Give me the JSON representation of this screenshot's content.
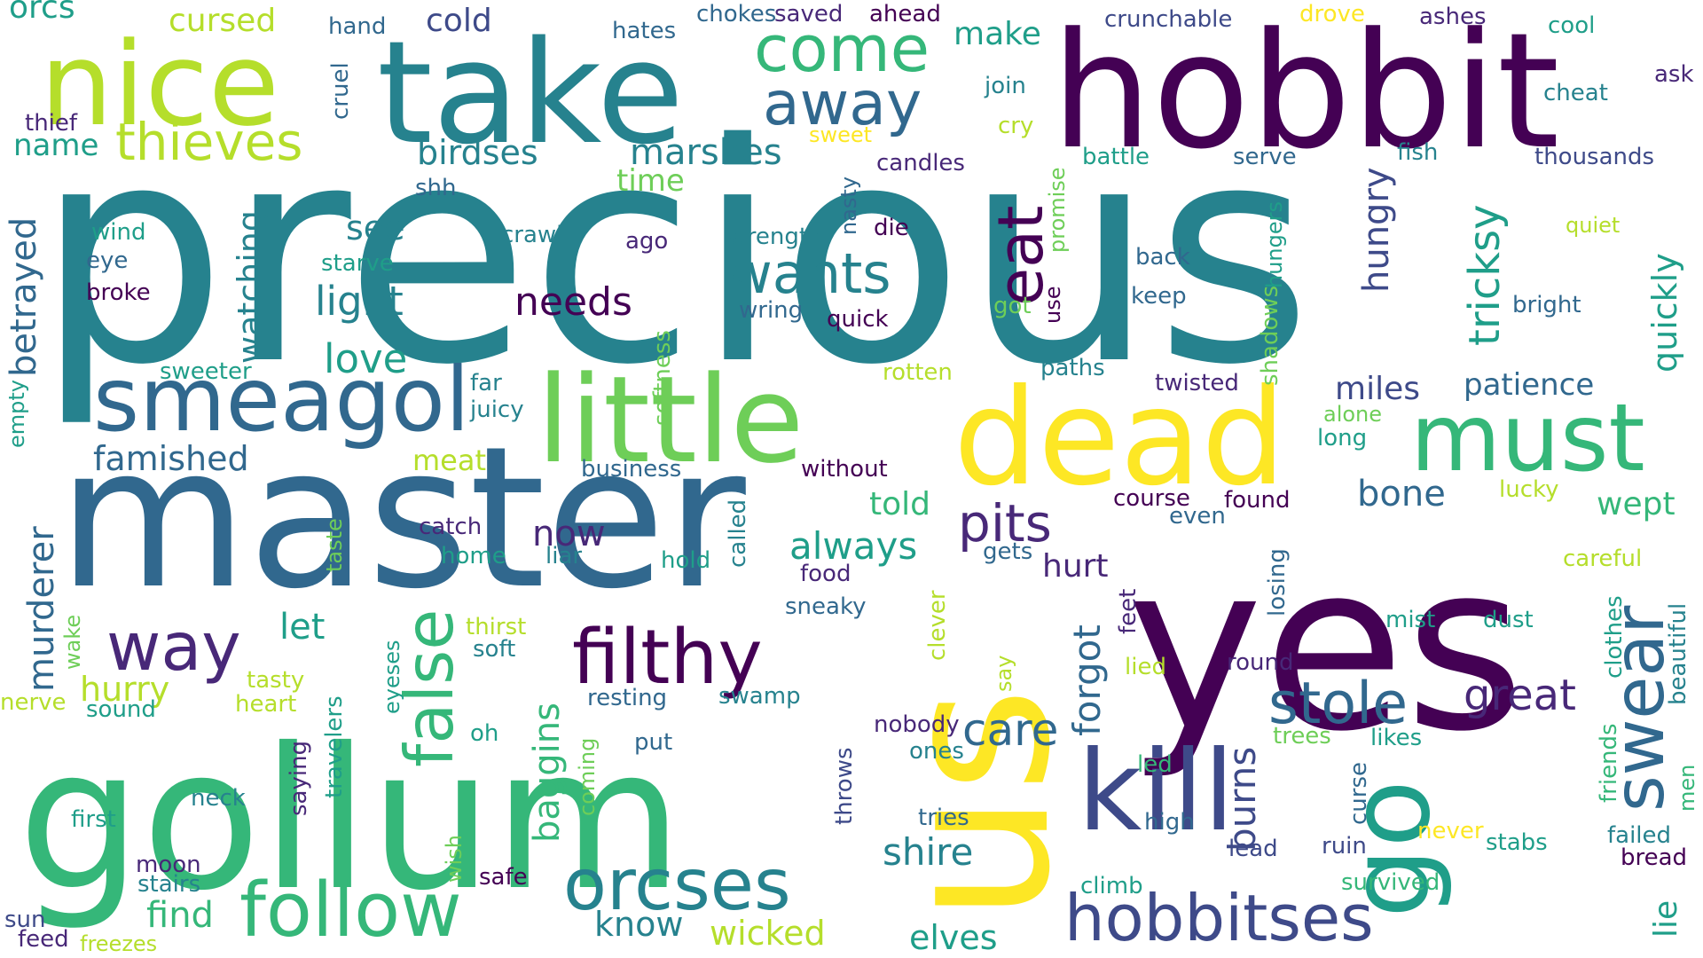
{
  "palette": {
    "purple": "#440154",
    "indigo": "#482878",
    "blue": "#3e4a89",
    "steel": "#31688e",
    "teal": "#26828e",
    "sea": "#1f9e89",
    "green": "#35b779",
    "lime": "#6ece58",
    "chartreuse": "#b5de2b",
    "yellow": "#fde725"
  },
  "words": [
    {
      "text": "precious",
      "color": "teal"
    },
    {
      "text": "master",
      "color": "steel"
    },
    {
      "text": "yes",
      "color": "purple"
    },
    {
      "text": "us",
      "color": "yellow"
    },
    {
      "text": "gollum",
      "color": "green"
    },
    {
      "text": "hobbit",
      "color": "purple"
    },
    {
      "text": "take",
      "color": "teal"
    },
    {
      "text": "nice",
      "color": "chartreuse"
    },
    {
      "text": "dead",
      "color": "yellow"
    },
    {
      "text": "little",
      "color": "lime"
    },
    {
      "text": "smeagol",
      "color": "steel"
    },
    {
      "text": "kill",
      "color": "blue"
    },
    {
      "text": "go",
      "color": "sea"
    },
    {
      "text": "must",
      "color": "green"
    },
    {
      "text": "follow",
      "color": "green"
    },
    {
      "text": "filthy",
      "color": "purple"
    },
    {
      "text": "orcses",
      "color": "teal"
    },
    {
      "text": "hobbitses",
      "color": "blue"
    },
    {
      "text": "swear",
      "color": "steel"
    },
    {
      "text": "false",
      "color": "green"
    },
    {
      "text": "way",
      "color": "indigo"
    },
    {
      "text": "come",
      "color": "green"
    },
    {
      "text": "away",
      "color": "steel"
    },
    {
      "text": "wants",
      "color": "teal"
    },
    {
      "text": "stole",
      "color": "steel"
    },
    {
      "text": "eat",
      "color": "purple"
    },
    {
      "text": "thieves",
      "color": "chartreuse"
    },
    {
      "text": "pits",
      "color": "indigo"
    },
    {
      "text": "care",
      "color": "steel"
    },
    {
      "text": "tricksy",
      "color": "sea"
    },
    {
      "text": "great",
      "color": "indigo"
    },
    {
      "text": "needs",
      "color": "purple"
    },
    {
      "text": "light",
      "color": "teal"
    },
    {
      "text": "love",
      "color": "sea"
    },
    {
      "text": "always",
      "color": "sea"
    },
    {
      "text": "shire",
      "color": "teal"
    },
    {
      "text": "elves",
      "color": "sea"
    },
    {
      "text": "find",
      "color": "green"
    },
    {
      "text": "wicked",
      "color": "chartreuse"
    },
    {
      "text": "know",
      "color": "teal"
    },
    {
      "text": "baggins",
      "color": "green"
    },
    {
      "text": "burns",
      "color": "blue"
    },
    {
      "text": "marshes",
      "color": "teal"
    },
    {
      "text": "birdses",
      "color": "teal"
    },
    {
      "text": "famished",
      "color": "steel"
    },
    {
      "text": "murderer",
      "color": "steel"
    },
    {
      "text": "betrayed",
      "color": "steel"
    },
    {
      "text": "watching",
      "color": "teal"
    },
    {
      "text": "hungry",
      "color": "blue"
    },
    {
      "text": "quickly",
      "color": "sea"
    },
    {
      "text": "see",
      "color": "teal"
    },
    {
      "text": "let",
      "color": "sea"
    },
    {
      "text": "hurry",
      "color": "chartreuse"
    },
    {
      "text": "now",
      "color": "indigo"
    },
    {
      "text": "told",
      "color": "green"
    },
    {
      "text": "bone",
      "color": "steel"
    },
    {
      "text": "hurt",
      "color": "indigo"
    },
    {
      "text": "forgot",
      "color": "steel"
    },
    {
      "text": "miles",
      "color": "blue"
    },
    {
      "text": "patience",
      "color": "steel"
    },
    {
      "text": "wept",
      "color": "green"
    },
    {
      "text": "name",
      "color": "sea"
    },
    {
      "text": "cold",
      "color": "blue"
    },
    {
      "text": "make",
      "color": "sea"
    },
    {
      "text": "cursed",
      "color": "chartreuse"
    },
    {
      "text": "orcs",
      "color": "sea"
    },
    {
      "text": "meat",
      "color": "chartreuse"
    },
    {
      "text": "time",
      "color": "lime"
    },
    {
      "text": "thousands",
      "color": "blue"
    },
    {
      "text": "crunchable",
      "color": "blue"
    },
    {
      "text": "ashes",
      "color": "indigo"
    },
    {
      "text": "cool",
      "color": "sea"
    },
    {
      "text": "hates",
      "color": "steel"
    },
    {
      "text": "chokes",
      "color": "steel"
    },
    {
      "text": "saved",
      "color": "indigo"
    },
    {
      "text": "ahead",
      "color": "purple"
    },
    {
      "text": "drove",
      "color": "yellow"
    },
    {
      "text": "hand",
      "color": "steel"
    },
    {
      "text": "cruel",
      "color": "steel"
    },
    {
      "text": "thief",
      "color": "indigo"
    },
    {
      "text": "join",
      "color": "teal"
    },
    {
      "text": "cry",
      "color": "chartreuse"
    },
    {
      "text": "sweet",
      "color": "yellow"
    },
    {
      "text": "cheat",
      "color": "teal"
    },
    {
      "text": "ask",
      "color": "indigo"
    },
    {
      "text": "shh",
      "color": "steel"
    },
    {
      "text": "candles",
      "color": "indigo"
    },
    {
      "text": "battle",
      "color": "sea"
    },
    {
      "text": "serve",
      "color": "steel"
    },
    {
      "text": "fish",
      "color": "teal"
    },
    {
      "text": "nasty",
      "color": "steel"
    },
    {
      "text": "promise",
      "color": "lime"
    },
    {
      "text": "hungers",
      "color": "sea"
    },
    {
      "text": "quiet",
      "color": "chartreuse"
    },
    {
      "text": "wind",
      "color": "sea"
    },
    {
      "text": "crawl",
      "color": "teal"
    },
    {
      "text": "ago",
      "color": "indigo"
    },
    {
      "text": "strength",
      "color": "teal"
    },
    {
      "text": "die",
      "color": "purple"
    },
    {
      "text": "back",
      "color": "steel"
    },
    {
      "text": "eye",
      "color": "steel"
    },
    {
      "text": "starve",
      "color": "sea"
    },
    {
      "text": "broke",
      "color": "purple"
    },
    {
      "text": "got",
      "color": "lime"
    },
    {
      "text": "use",
      "color": "purple"
    },
    {
      "text": "keep",
      "color": "steel"
    },
    {
      "text": "shadows",
      "color": "lime"
    },
    {
      "text": "bright",
      "color": "steel"
    },
    {
      "text": "wring",
      "color": "steel"
    },
    {
      "text": "quick",
      "color": "purple"
    },
    {
      "text": "softness",
      "color": "lime"
    },
    {
      "text": "sweeter",
      "color": "sea"
    },
    {
      "text": "far",
      "color": "teal"
    },
    {
      "text": "rotten",
      "color": "chartreuse"
    },
    {
      "text": "paths",
      "color": "teal"
    },
    {
      "text": "twisted",
      "color": "indigo"
    },
    {
      "text": "juicy",
      "color": "teal"
    },
    {
      "text": "empty",
      "color": "sea"
    },
    {
      "text": "alone",
      "color": "lime"
    },
    {
      "text": "long",
      "color": "sea"
    },
    {
      "text": "business",
      "color": "steel"
    },
    {
      "text": "without",
      "color": "purple"
    },
    {
      "text": "course",
      "color": "purple"
    },
    {
      "text": "found",
      "color": "purple"
    },
    {
      "text": "even",
      "color": "steel"
    },
    {
      "text": "lucky",
      "color": "chartreuse"
    },
    {
      "text": "catch",
      "color": "indigo"
    },
    {
      "text": "called",
      "color": "teal"
    },
    {
      "text": "taste",
      "color": "lime"
    },
    {
      "text": "home",
      "color": "sea"
    },
    {
      "text": "liar",
      "color": "teal"
    },
    {
      "text": "hold",
      "color": "sea"
    },
    {
      "text": "gets",
      "color": "steel"
    },
    {
      "text": "food",
      "color": "indigo"
    },
    {
      "text": "losing",
      "color": "steel"
    },
    {
      "text": "careful",
      "color": "chartreuse"
    },
    {
      "text": "sneaky",
      "color": "steel"
    },
    {
      "text": "clever",
      "color": "chartreuse"
    },
    {
      "text": "feet",
      "color": "indigo"
    },
    {
      "text": "wake",
      "color": "lime"
    },
    {
      "text": "thirst",
      "color": "chartreuse"
    },
    {
      "text": "soft",
      "color": "teal"
    },
    {
      "text": "mist",
      "color": "sea"
    },
    {
      "text": "dust",
      "color": "sea"
    },
    {
      "text": "clothes",
      "color": "sea"
    },
    {
      "text": "beautiful",
      "color": "teal"
    },
    {
      "text": "eyeses",
      "color": "sea"
    },
    {
      "text": "lied",
      "color": "chartreuse"
    },
    {
      "text": "round",
      "color": "indigo"
    },
    {
      "text": "tasty",
      "color": "chartreuse"
    },
    {
      "text": "say",
      "color": "chartreuse"
    },
    {
      "text": "resting",
      "color": "steel"
    },
    {
      "text": "swamp",
      "color": "teal"
    },
    {
      "text": "nerve",
      "color": "chartreuse"
    },
    {
      "text": "heart",
      "color": "chartreuse"
    },
    {
      "text": "sound",
      "color": "sea"
    },
    {
      "text": "oh",
      "color": "sea"
    },
    {
      "text": "put",
      "color": "steel"
    },
    {
      "text": "nobody",
      "color": "indigo"
    },
    {
      "text": "trees",
      "color": "lime"
    },
    {
      "text": "likes",
      "color": "sea"
    },
    {
      "text": "friends",
      "color": "green"
    },
    {
      "text": "ones",
      "color": "teal"
    },
    {
      "text": "men",
      "color": "green"
    },
    {
      "text": "saying",
      "color": "indigo"
    },
    {
      "text": "travelers",
      "color": "sea"
    },
    {
      "text": "coming",
      "color": "lime"
    },
    {
      "text": "throws",
      "color": "blue"
    },
    {
      "text": "led",
      "color": "green"
    },
    {
      "text": "curse",
      "color": "steel"
    },
    {
      "text": "neck",
      "color": "teal"
    },
    {
      "text": "first",
      "color": "sea"
    },
    {
      "text": "tries",
      "color": "steel"
    },
    {
      "text": "high",
      "color": "steel"
    },
    {
      "text": "never",
      "color": "yellow"
    },
    {
      "text": "failed",
      "color": "teal"
    },
    {
      "text": "moon",
      "color": "indigo"
    },
    {
      "text": "wish",
      "color": "lime"
    },
    {
      "text": "lead",
      "color": "blue"
    },
    {
      "text": "ruin",
      "color": "blue"
    },
    {
      "text": "stabs",
      "color": "sea"
    },
    {
      "text": "bread",
      "color": "purple"
    },
    {
      "text": "stairs",
      "color": "teal"
    },
    {
      "text": "safe",
      "color": "purple"
    },
    {
      "text": "climb",
      "color": "sea"
    },
    {
      "text": "survived",
      "color": "green"
    },
    {
      "text": "lie",
      "color": "sea"
    },
    {
      "text": "sun",
      "color": "blue"
    },
    {
      "text": "feed",
      "color": "indigo"
    },
    {
      "text": "freezes",
      "color": "chartreuse"
    }
  ]
}
